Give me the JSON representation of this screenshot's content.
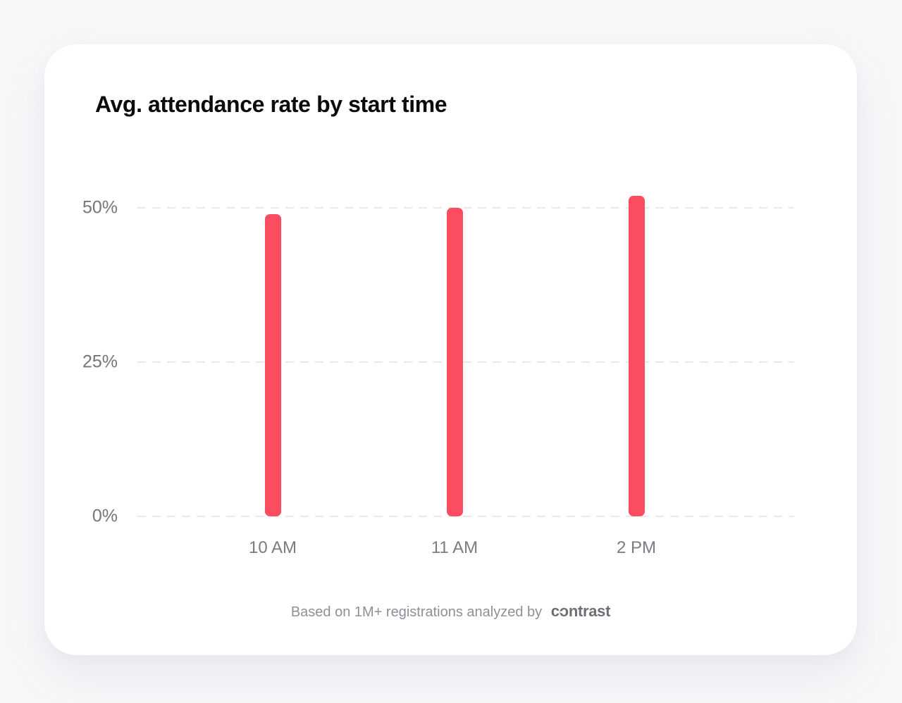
{
  "card": {
    "title": "Avg. attendance rate by start time"
  },
  "footer": {
    "text": "Based on 1M+ registrations analyzed by",
    "brand": "contrast"
  },
  "chart_data": {
    "type": "bar",
    "title": "Avg. attendance rate by start time",
    "categories": [
      "10 AM",
      "11 AM",
      "2 PM"
    ],
    "values": [
      49,
      50,
      52
    ],
    "xlabel": "",
    "ylabel": "",
    "yticks": [
      0,
      25,
      50
    ],
    "ytick_labels": [
      "0%",
      "25%",
      "50%"
    ],
    "ylim": [
      0,
      54
    ],
    "grid": "horizontal-dashed",
    "legend": "none",
    "bar_color": "#fb4d5f",
    "annotation": "Based on 1M+ registrations analyzed by contrast"
  },
  "colors": {
    "page_background": "#f7f7f9",
    "card_background": "#ffffff",
    "bar": "#fb4d5f",
    "gridline": "#e9e9ed",
    "axis_label": "#75757c",
    "title": "#0b0b0c",
    "footer_text": "#8f8f96",
    "footer_brand": "#6e6e74"
  }
}
